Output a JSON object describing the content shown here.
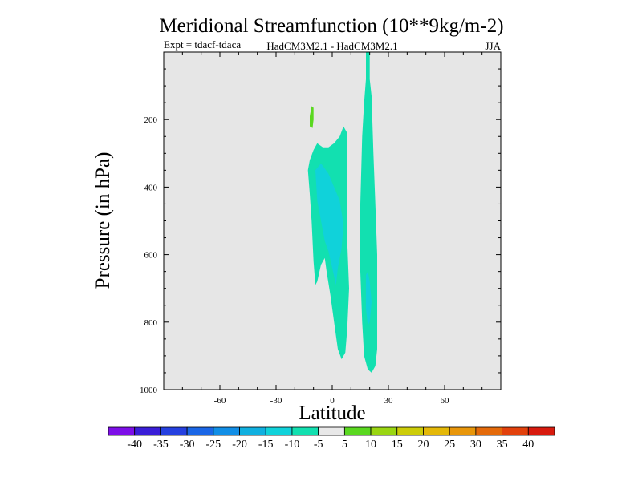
{
  "chart_data": {
    "type": "contour",
    "title": "Meridional Streamfunction (10**9kg/m-2)",
    "subtitle_left": "Expt = tdacf-tdaca",
    "subtitle_center": "HadCM3M2.1 - HadCM3M2.1",
    "subtitle_right": "JJA",
    "xlabel": "Latitude",
    "ylabel": "Pressure (in hPa)",
    "xlim": [
      -90,
      90
    ],
    "ylim": [
      1000,
      0
    ],
    "xticks": [
      -60,
      -30,
      0,
      30,
      60
    ],
    "yticks": [
      200,
      400,
      600,
      800,
      1000
    ],
    "background_color": "#e6e6e6",
    "colorbar": {
      "levels": [
        -40,
        -35,
        -30,
        -25,
        -20,
        -15,
        -10,
        -5,
        5,
        10,
        15,
        20,
        25,
        30,
        35,
        40
      ],
      "colors": [
        "#7d0ee8",
        "#3a1ed8",
        "#2540e0",
        "#1a66e6",
        "#118ee6",
        "#10b0e0",
        "#10d2da",
        "#12e0b0",
        "#e8e8e8",
        "#5ad820",
        "#9ad612",
        "#cccc08",
        "#e4b808",
        "#e8960a",
        "#e46a0a",
        "#e2410c",
        "#d81a0e"
      ]
    },
    "regions": [
      {
        "level_color": "#12e0b0",
        "label": "-10 to -5",
        "lat_range": [
          -13,
          8
        ],
        "p_range": [
          270,
          910
        ]
      },
      {
        "level_color": "#10d2da",
        "label": "-15 to -10",
        "lat_range": [
          -9,
          8
        ],
        "p_range": [
          330,
          690
        ]
      },
      {
        "level_color": "#12e0b0",
        "label": "-10 to -5",
        "lat_range": [
          15,
          24
        ],
        "p_range": [
          0,
          950
        ]
      },
      {
        "level_color": "#10d2da",
        "label": "-15 to -10",
        "lat_range": [
          18,
          21
        ],
        "p_range": [
          660,
          810
        ]
      },
      {
        "level_color": "#5ad820",
        "label": "5 to 10",
        "lat_range": [
          -12,
          -10
        ],
        "p_range": [
          160,
          225
        ]
      }
    ]
  }
}
